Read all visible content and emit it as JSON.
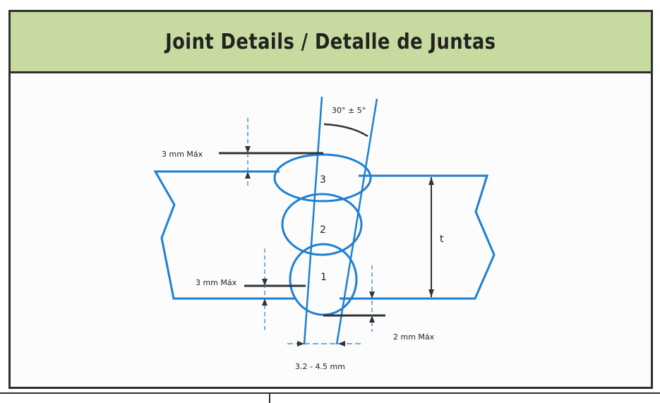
{
  "header": {
    "title": "Joint Details / Detalle de Juntas"
  },
  "diagram": {
    "bevel_angle": "30° ± 5°",
    "cap_reinforcement": "3 mm Máx",
    "root_reinforcement": "3 mm Máx",
    "root_protrusion": "2 mm Máx",
    "root_gap": "3.2 - 4.5 mm",
    "pass_1": "1",
    "pass_2": "2",
    "pass_3": "3",
    "thickness": "t"
  },
  "colors": {
    "outline": "#1f7fd1",
    "dimension": "#2a2a2a",
    "header_bg": "#c7dba1"
  }
}
